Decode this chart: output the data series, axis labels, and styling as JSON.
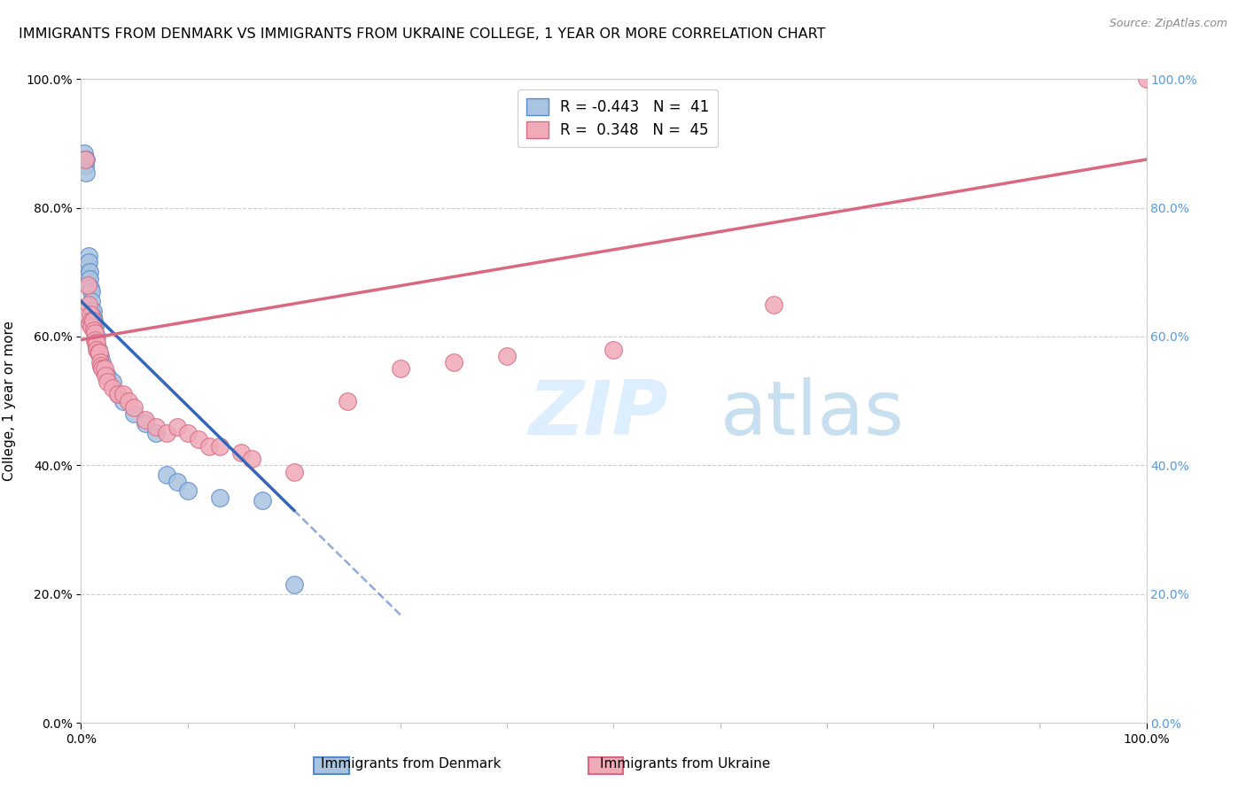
{
  "title": "IMMIGRANTS FROM DENMARK VS IMMIGRANTS FROM UKRAINE COLLEGE, 1 YEAR OR MORE CORRELATION CHART",
  "source": "Source: ZipAtlas.com",
  "ylabel": "College, 1 year or more",
  "xlim": [
    0.0,
    1.0
  ],
  "ylim": [
    0.0,
    1.0
  ],
  "xticks": [
    0.0,
    0.1,
    0.2,
    0.3,
    0.4,
    0.5,
    0.6,
    0.7,
    0.8,
    0.9,
    1.0
  ],
  "yticks": [
    0.0,
    0.2,
    0.4,
    0.6,
    0.8,
    1.0
  ],
  "denmark_color": "#a8c4e0",
  "ukraine_color": "#f0aab8",
  "denmark_edge_color": "#5588cc",
  "ukraine_edge_color": "#d96880",
  "denmark_line_color": "#3366bb",
  "ukraine_line_color": "#d96880",
  "watermark_color": "#ddeeff",
  "background_color": "#ffffff",
  "grid_color": "#cccccc",
  "right_tick_color": "#5599dd",
  "legend_dk_label": "R = -0.443   N =  41",
  "legend_uk_label": "R =  0.348   N =  45",
  "bottom_legend_dk": "Immigrants from Denmark",
  "bottom_legend_uk": "Immigrants from Ukraine",
  "dk_line_x0": 0.0,
  "dk_line_y0": 0.655,
  "dk_line_x1": 0.2,
  "dk_line_y1": 0.33,
  "dk_line_dash_x1": 0.3,
  "dk_line_dash_y1": 0.165,
  "uk_line_x0": 0.0,
  "uk_line_y0": 0.595,
  "uk_line_x1": 1.0,
  "uk_line_y1": 0.875,
  "denmark_x": [
    0.003,
    0.004,
    0.004,
    0.005,
    0.005,
    0.006,
    0.006,
    0.007,
    0.007,
    0.008,
    0.008,
    0.009,
    0.01,
    0.01,
    0.01,
    0.011,
    0.011,
    0.012,
    0.012,
    0.013,
    0.013,
    0.015,
    0.015,
    0.016,
    0.018,
    0.019,
    0.02,
    0.022,
    0.025,
    0.03,
    0.035,
    0.04,
    0.05,
    0.06,
    0.07,
    0.08,
    0.09,
    0.1,
    0.13,
    0.17,
    0.2
  ],
  "denmark_y": [
    0.885,
    0.875,
    0.865,
    0.875,
    0.855,
    0.71,
    0.695,
    0.725,
    0.715,
    0.7,
    0.69,
    0.675,
    0.67,
    0.655,
    0.64,
    0.64,
    0.63,
    0.625,
    0.615,
    0.615,
    0.605,
    0.6,
    0.585,
    0.58,
    0.57,
    0.555,
    0.56,
    0.545,
    0.54,
    0.53,
    0.51,
    0.5,
    0.48,
    0.465,
    0.45,
    0.385,
    0.375,
    0.36,
    0.35,
    0.345,
    0.215
  ],
  "ukraine_x": [
    0.004,
    0.006,
    0.007,
    0.008,
    0.009,
    0.01,
    0.01,
    0.011,
    0.012,
    0.013,
    0.013,
    0.014,
    0.015,
    0.015,
    0.016,
    0.017,
    0.018,
    0.019,
    0.02,
    0.022,
    0.023,
    0.025,
    0.03,
    0.035,
    0.04,
    0.045,
    0.05,
    0.06,
    0.07,
    0.08,
    0.09,
    0.1,
    0.11,
    0.12,
    0.13,
    0.15,
    0.16,
    0.2,
    0.25,
    0.3,
    0.35,
    0.4,
    0.5,
    0.65,
    1.0
  ],
  "ukraine_y": [
    0.875,
    0.68,
    0.65,
    0.62,
    0.635,
    0.625,
    0.615,
    0.625,
    0.61,
    0.605,
    0.595,
    0.59,
    0.59,
    0.58,
    0.575,
    0.575,
    0.56,
    0.555,
    0.55,
    0.55,
    0.54,
    0.53,
    0.52,
    0.51,
    0.51,
    0.5,
    0.49,
    0.47,
    0.46,
    0.45,
    0.46,
    0.45,
    0.44,
    0.43,
    0.43,
    0.42,
    0.41,
    0.39,
    0.5,
    0.55,
    0.56,
    0.57,
    0.58,
    0.65,
    1.0
  ]
}
